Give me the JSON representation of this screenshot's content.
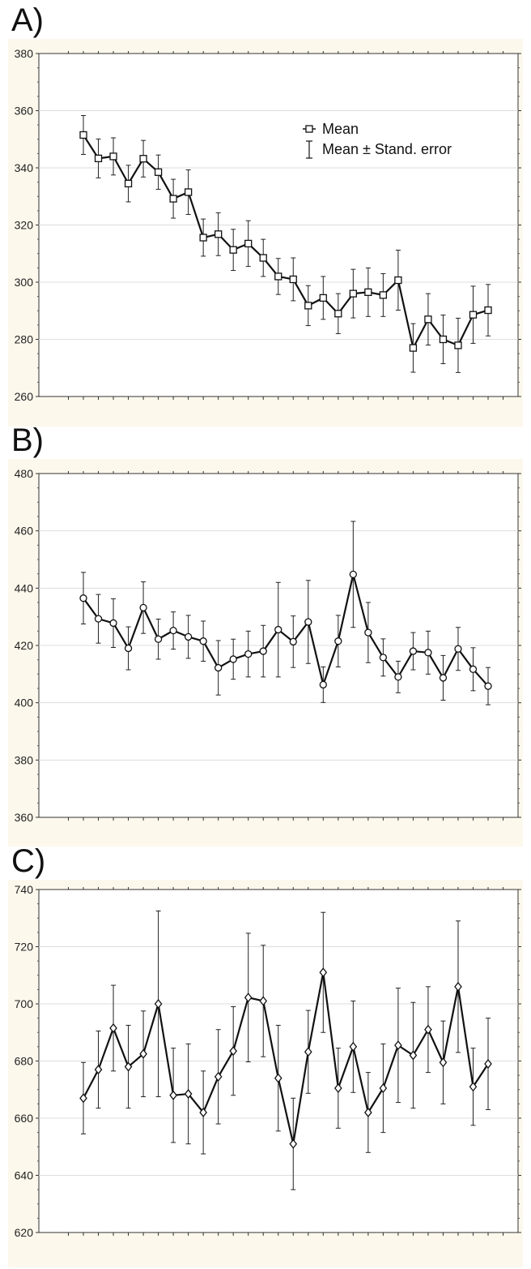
{
  "colors": {
    "panel_bg": "#fdf8ec",
    "plot_bg": "#ffffff",
    "grid": "#dddddd",
    "line": "#111111"
  },
  "legend": {
    "mean_label": "Mean",
    "error_label": "Mean ± Stand. error"
  },
  "chart_data": [
    {
      "panel_label": "A)",
      "type": "line",
      "marker": "square",
      "legend_position": "top-right",
      "grid": true,
      "ylim": [
        260,
        380
      ],
      "yticks": [
        260,
        280,
        300,
        320,
        340,
        360,
        380
      ],
      "series": [
        {
          "name": "Mean",
          "x": [
            1,
            2,
            3,
            4,
            5,
            6,
            7,
            8,
            9,
            10,
            11,
            12,
            13,
            14,
            15,
            16,
            17,
            18,
            19,
            20,
            21,
            22,
            23,
            24,
            25,
            26,
            27,
            28
          ],
          "values": [
            351.5,
            343.3,
            344,
            334.5,
            343.2,
            338.5,
            329.2,
            331.5,
            315.6,
            316.8,
            311.3,
            313.5,
            308.5,
            302,
            301,
            291.8,
            294.5,
            289,
            296,
            296.5,
            295.5,
            300.7,
            277,
            287,
            280,
            277.9,
            288.6,
            290.2
          ],
          "error": [
            6.8,
            6.8,
            6.5,
            6.4,
            6.4,
            6.0,
            6.8,
            7.8,
            6.5,
            7.5,
            7.2,
            8.0,
            6.5,
            6.3,
            7.5,
            7.0,
            7.5,
            7.0,
            8.5,
            8.5,
            7.5,
            10.5,
            8.5,
            9.0,
            8.5,
            9.5,
            10.0,
            9.0
          ]
        }
      ]
    },
    {
      "panel_label": "B)",
      "type": "line",
      "marker": "circle",
      "grid": true,
      "ylim": [
        360,
        480
      ],
      "yticks": [
        360,
        380,
        400,
        420,
        440,
        460,
        480
      ],
      "series": [
        {
          "name": "Mean",
          "x": [
            1,
            2,
            3,
            4,
            5,
            6,
            7,
            8,
            9,
            10,
            11,
            12,
            13,
            14,
            15,
            16,
            17,
            18,
            19,
            20,
            21,
            22,
            23,
            24,
            25,
            26,
            27,
            28
          ],
          "values": [
            436.5,
            429.3,
            427.8,
            419,
            433.2,
            422.2,
            425.2,
            423,
            421.5,
            412.2,
            415.2,
            417,
            418,
            425.5,
            421.3,
            428.2,
            406.3,
            421.5,
            444.8,
            424.5,
            415.8,
            409,
            418,
            417.5,
            408.7,
            418.8,
            411.7,
            405.8
          ],
          "error": [
            9.0,
            8.5,
            8.5,
            7.5,
            9.0,
            7.0,
            6.5,
            7.5,
            7.0,
            9.5,
            7.0,
            8.0,
            9.0,
            16.5,
            9.0,
            14.5,
            6.2,
            9.0,
            18.5,
            10.5,
            6.5,
            5.5,
            6.5,
            7.5,
            7.8,
            7.5,
            7.5,
            6.5
          ]
        }
      ]
    },
    {
      "panel_label": "C)",
      "type": "line",
      "marker": "diamond",
      "grid": true,
      "ylim": [
        620,
        740
      ],
      "yticks": [
        620,
        640,
        660,
        680,
        700,
        720,
        740
      ],
      "series": [
        {
          "name": "Mean",
          "x": [
            1,
            2,
            3,
            4,
            5,
            6,
            7,
            8,
            9,
            10,
            11,
            12,
            13,
            14,
            15,
            16,
            17,
            18,
            19,
            20,
            21,
            22,
            23,
            24,
            25,
            26,
            27,
            28
          ],
          "values": [
            667,
            677,
            691.5,
            678,
            682.5,
            700,
            668,
            668.5,
            662,
            674.5,
            683.5,
            702.2,
            701,
            674,
            651,
            683.2,
            711,
            670.5,
            685,
            662,
            670.5,
            685.5,
            682,
            691,
            679.5,
            706,
            671,
            679
          ],
          "error": [
            12.5,
            13.5,
            15,
            14.5,
            15,
            32.5,
            16.5,
            17.5,
            14.5,
            16.5,
            15.5,
            22.5,
            19.5,
            18.5,
            16,
            14.5,
            21,
            14,
            16,
            14,
            15.5,
            20,
            18.5,
            15,
            14.5,
            23,
            13.5,
            16
          ]
        }
      ]
    }
  ]
}
